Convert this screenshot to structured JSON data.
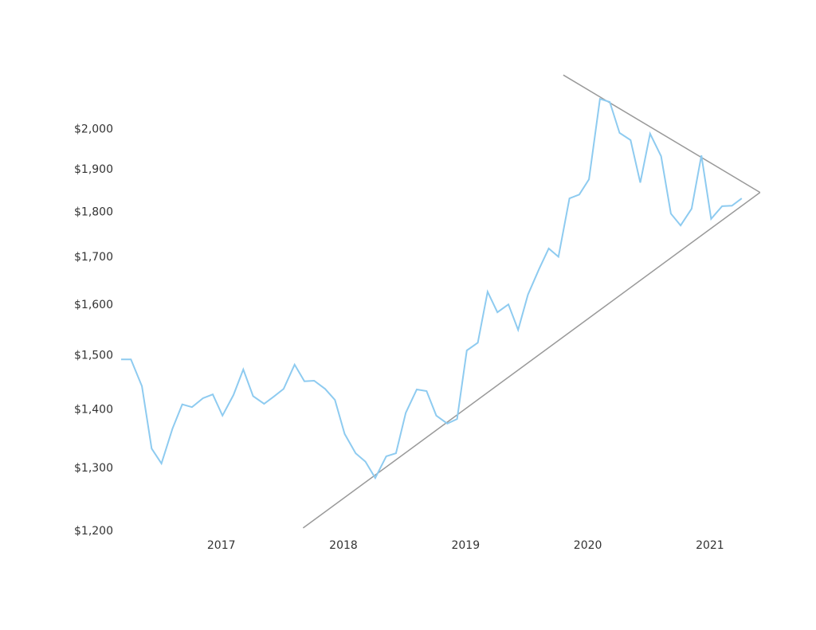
{
  "chart_data": {
    "type": "line",
    "log_y": true,
    "x": [
      2016.18,
      2016.26,
      2016.35,
      2016.43,
      2016.51,
      2016.6,
      2016.68,
      2016.76,
      2016.85,
      2016.93,
      2017.01,
      2017.1,
      2017.18,
      2017.26,
      2017.35,
      2017.43,
      2017.51,
      2017.6,
      2017.68,
      2017.76,
      2017.85,
      2017.93,
      2018.01,
      2018.1,
      2018.18,
      2018.26,
      2018.35,
      2018.43,
      2018.51,
      2018.6,
      2018.68,
      2018.76,
      2018.85,
      2018.93,
      2019.01,
      2019.1,
      2019.18,
      2019.26,
      2019.35,
      2019.43,
      2019.51,
      2019.6,
      2019.68,
      2019.76,
      2019.85,
      2019.93,
      2020.01,
      2020.1,
      2020.18,
      2020.26,
      2020.35,
      2020.43,
      2020.51,
      2020.6,
      2020.68,
      2020.76,
      2020.85,
      2020.93,
      2021.01,
      2021.1,
      2021.18,
      2021.26
    ],
    "series": [
      {
        "color": "#8ecbf0",
        "values": [
          1493,
          1493,
          1443,
          1333,
          1308,
          1367,
          1410,
          1405,
          1421,
          1428,
          1390,
          1427,
          1474,
          1425,
          1411,
          1424,
          1438,
          1483,
          1452,
          1453,
          1438,
          1418,
          1358,
          1325,
          1311,
          1284,
          1320,
          1325,
          1395,
          1437,
          1434,
          1390,
          1376,
          1384,
          1510,
          1525,
          1627,
          1585,
          1601,
          1550,
          1621,
          1674,
          1719,
          1701,
          1832,
          1841,
          1877,
          2079,
          2071,
          1991,
          1973,
          1869,
          1989,
          1933,
          1797,
          1770,
          1808,
          1935,
          1785,
          1814,
          1815,
          1832
        ]
      }
    ],
    "trend_lines": [
      {
        "color": "#999999",
        "x": [
          2019.8,
          2021.41
        ],
        "values": [
          2143,
          1846
        ]
      },
      {
        "color": "#999999",
        "x": [
          2017.67,
          2021.41
        ],
        "values": [
          1205,
          1846
        ]
      }
    ],
    "xlim": [
      2016.18,
      2021.6
    ],
    "xticks": [
      2017,
      2018,
      2019,
      2020,
      2021
    ],
    "ylim": [
      1200,
      2150
    ],
    "yticks": [
      {
        "value": 1200,
        "label": "$1,200"
      },
      {
        "value": 1300,
        "label": "$1,300"
      },
      {
        "value": 1400,
        "label": "$1,400"
      },
      {
        "value": 1500,
        "label": "$1,500"
      },
      {
        "value": 1600,
        "label": "$1,600"
      },
      {
        "value": 1700,
        "label": "$1,700"
      },
      {
        "value": 1800,
        "label": "$1,800"
      },
      {
        "value": 1900,
        "label": "$1,900"
      },
      {
        "value": 2000,
        "label": "$2,000"
      }
    ]
  }
}
